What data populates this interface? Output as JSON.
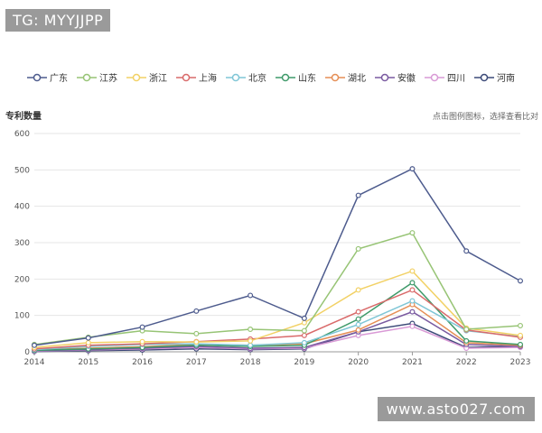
{
  "watermarks": {
    "top": "TG: MYYJJPP",
    "bottom": "www.asto027.com"
  },
  "hint": "点击图例图标，选择查看比对",
  "chart_data": {
    "type": "line",
    "title": "",
    "xlabel": "",
    "ylabel": "专利数量",
    "ylim": [
      0,
      600
    ],
    "yticks": [
      0,
      100,
      200,
      300,
      400,
      500,
      600
    ],
    "grid": true,
    "legend_position": "top-left",
    "categories": [
      "2014",
      "2015",
      "2016",
      "2017",
      "2018",
      "2019",
      "2020",
      "2021",
      "2022",
      "2023"
    ],
    "series": [
      {
        "name": "广东",
        "color": "#4d5b8d",
        "values": [
          18,
          38,
          68,
          112,
          155,
          92,
          430,
          503,
          277,
          195
        ]
      },
      {
        "name": "江苏",
        "color": "#97c475",
        "values": [
          20,
          40,
          58,
          50,
          62,
          58,
          283,
          327,
          62,
          72
        ]
      },
      {
        "name": "浙江",
        "color": "#f2d165",
        "values": [
          12,
          25,
          28,
          27,
          30,
          80,
          170,
          222,
          65,
          45
        ]
      },
      {
        "name": "上海",
        "color": "#d96a6a",
        "values": [
          8,
          18,
          22,
          28,
          35,
          45,
          110,
          170,
          60,
          40
        ]
      },
      {
        "name": "北京",
        "color": "#7fc6d6",
        "values": [
          6,
          15,
          20,
          22,
          18,
          25,
          75,
          140,
          58,
          42
        ]
      },
      {
        "name": "山东",
        "color": "#3f9a6a",
        "values": [
          4,
          8,
          12,
          18,
          15,
          18,
          90,
          190,
          30,
          20
        ]
      },
      {
        "name": "湖北",
        "color": "#e58e55",
        "values": [
          5,
          10,
          14,
          20,
          18,
          22,
          60,
          130,
          25,
          18
        ]
      },
      {
        "name": "安徽",
        "color": "#7a5aa0",
        "values": [
          3,
          6,
          10,
          15,
          10,
          12,
          55,
          110,
          20,
          15
        ]
      },
      {
        "name": "四川",
        "color": "#d99ad6",
        "values": [
          2,
          5,
          8,
          12,
          8,
          10,
          45,
          70,
          10,
          12
        ]
      },
      {
        "name": "河南",
        "color": "#3c4a78",
        "values": [
          1,
          3,
          5,
          8,
          6,
          8,
          55,
          78,
          12,
          15
        ]
      }
    ]
  }
}
